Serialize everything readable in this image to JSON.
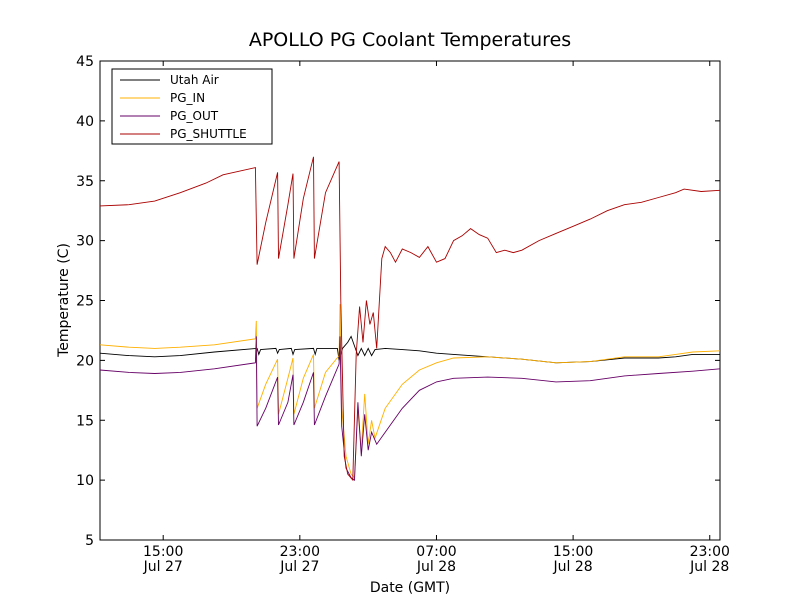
{
  "chart_data": {
    "type": "line",
    "title": "APOLLO PG Coolant Temperatures",
    "xlabel": "Date (GMT)",
    "ylabel": "Temperature (C)",
    "ylim": [
      5,
      45
    ],
    "xlim_hours": [
      11.3,
      23.6
    ],
    "xlim_note": "hours relative to Jul 27 00:00 from 11.3 to 23.6 -> expressed as 11.3 to 47.6 continuous",
    "x_range": [
      11.3,
      47.6
    ],
    "yticks": [
      "5",
      "10",
      "15",
      "20",
      "25",
      "30",
      "35",
      "40",
      "45"
    ],
    "ytick_values": [
      5,
      10,
      15,
      20,
      25,
      30,
      35,
      40,
      45
    ],
    "xticks": [
      {
        "value": 15,
        "time": "15:00",
        "date": "Jul 27"
      },
      {
        "value": 23,
        "time": "23:00",
        "date": "Jul 27"
      },
      {
        "value": 31,
        "time": "07:00",
        "date": "Jul 28"
      },
      {
        "value": 39,
        "time": "15:00",
        "date": "Jul 28"
      },
      {
        "value": 47,
        "time": "23:00",
        "date": "Jul 28"
      }
    ],
    "legend_position": "top-left",
    "series": [
      {
        "name": "Utah Air",
        "color": "#000000",
        "points": [
          [
            11.3,
            20.6
          ],
          [
            13,
            20.4
          ],
          [
            14.5,
            20.3
          ],
          [
            16,
            20.4
          ],
          [
            18,
            20.7
          ],
          [
            20.5,
            21.0
          ],
          [
            20.6,
            20.5
          ],
          [
            20.7,
            20.9
          ],
          [
            21.6,
            21.0
          ],
          [
            21.7,
            20.6
          ],
          [
            21.8,
            20.9
          ],
          [
            22.5,
            21.0
          ],
          [
            22.6,
            20.5
          ],
          [
            22.7,
            20.9
          ],
          [
            23.8,
            21.0
          ],
          [
            23.9,
            20.5
          ],
          [
            24,
            21.0
          ],
          [
            25.2,
            21.0
          ],
          [
            25.3,
            20.0
          ],
          [
            25.5,
            21.0
          ],
          [
            25.8,
            21.5
          ],
          [
            26,
            22.0
          ],
          [
            26.2,
            21.2
          ],
          [
            26.4,
            20.4
          ],
          [
            26.6,
            21.0
          ],
          [
            26.8,
            20.4
          ],
          [
            27,
            21.0
          ],
          [
            27.2,
            20.4
          ],
          [
            27.4,
            20.9
          ],
          [
            28,
            21.0
          ],
          [
            29,
            20.9
          ],
          [
            30,
            20.8
          ],
          [
            31,
            20.6
          ],
          [
            32,
            20.5
          ],
          [
            34,
            20.3
          ],
          [
            36,
            20.1
          ],
          [
            38,
            19.8
          ],
          [
            40,
            19.9
          ],
          [
            42,
            20.2
          ],
          [
            44,
            20.2
          ],
          [
            45,
            20.3
          ],
          [
            46,
            20.5
          ],
          [
            47.6,
            20.5
          ]
        ]
      },
      {
        "name": "PG_IN",
        "color": "#ffb000",
        "points": [
          [
            11.3,
            21.3
          ],
          [
            13,
            21.1
          ],
          [
            14.5,
            21.0
          ],
          [
            16,
            21.1
          ],
          [
            18,
            21.3
          ],
          [
            20.4,
            21.8
          ],
          [
            20.45,
            23.3
          ],
          [
            20.5,
            16.0
          ],
          [
            21,
            18.0
          ],
          [
            21.7,
            20.1
          ],
          [
            21.75,
            15.5
          ],
          [
            22.3,
            18.5
          ],
          [
            22.6,
            20.2
          ],
          [
            22.65,
            15.5
          ],
          [
            23.2,
            18.5
          ],
          [
            23.8,
            20.5
          ],
          [
            23.85,
            16.0
          ],
          [
            24.5,
            19.0
          ],
          [
            25.3,
            20.4
          ],
          [
            25.35,
            24.7
          ],
          [
            25.45,
            16.0
          ],
          [
            25.7,
            12.0
          ],
          [
            26,
            10.5
          ],
          [
            26.2,
            10.2
          ],
          [
            26.4,
            15.8
          ],
          [
            26.6,
            12.5
          ],
          [
            26.8,
            17.2
          ],
          [
            27,
            13.0
          ],
          [
            27.2,
            15.0
          ],
          [
            27.4,
            13.5
          ],
          [
            28,
            16.0
          ],
          [
            29,
            18.0
          ],
          [
            30,
            19.2
          ],
          [
            31,
            19.8
          ],
          [
            32,
            20.2
          ],
          [
            34,
            20.3
          ],
          [
            36,
            20.1
          ],
          [
            38,
            19.8
          ],
          [
            40,
            19.9
          ],
          [
            42,
            20.3
          ],
          [
            44,
            20.3
          ],
          [
            45,
            20.5
          ],
          [
            46,
            20.7
          ],
          [
            47.6,
            20.8
          ]
        ]
      },
      {
        "name": "PG_OUT",
        "color": "#660066",
        "points": [
          [
            11.3,
            19.2
          ],
          [
            13,
            19.0
          ],
          [
            14.5,
            18.9
          ],
          [
            16,
            19.0
          ],
          [
            18,
            19.3
          ],
          [
            20.4,
            19.8
          ],
          [
            20.45,
            22.0
          ],
          [
            20.5,
            14.5
          ],
          [
            21,
            16.0
          ],
          [
            21.7,
            18.6
          ],
          [
            21.75,
            14.6
          ],
          [
            22.3,
            16.5
          ],
          [
            22.6,
            18.8
          ],
          [
            22.65,
            14.6
          ],
          [
            23.2,
            16.5
          ],
          [
            23.8,
            19.0
          ],
          [
            23.85,
            14.6
          ],
          [
            24.5,
            17.0
          ],
          [
            25.3,
            19.7
          ],
          [
            25.35,
            22.0
          ],
          [
            25.45,
            14.5
          ],
          [
            25.7,
            11.0
          ],
          [
            26,
            10.2
          ],
          [
            26.2,
            10.0
          ],
          [
            26.4,
            16.5
          ],
          [
            26.6,
            12.0
          ],
          [
            26.8,
            15.5
          ],
          [
            27,
            12.5
          ],
          [
            27.2,
            14.0
          ],
          [
            27.5,
            13.0
          ],
          [
            28,
            14.0
          ],
          [
            29,
            16.0
          ],
          [
            30,
            17.5
          ],
          [
            31,
            18.2
          ],
          [
            32,
            18.5
          ],
          [
            34,
            18.6
          ],
          [
            36,
            18.5
          ],
          [
            38,
            18.2
          ],
          [
            40,
            18.3
          ],
          [
            42,
            18.7
          ],
          [
            44,
            18.9
          ],
          [
            46,
            19.1
          ],
          [
            47.6,
            19.3
          ]
        ]
      },
      {
        "name": "PG_SHUTTLE",
        "color": "#aa0000",
        "points": [
          [
            11.3,
            32.9
          ],
          [
            13,
            33.0
          ],
          [
            14.5,
            33.3
          ],
          [
            16,
            34.0
          ],
          [
            17.5,
            34.8
          ],
          [
            18.5,
            35.5
          ],
          [
            20.4,
            36.1
          ],
          [
            20.5,
            28.0
          ],
          [
            21,
            31.5
          ],
          [
            21.7,
            35.7
          ],
          [
            21.75,
            28.5
          ],
          [
            22.3,
            33.0
          ],
          [
            22.6,
            35.6
          ],
          [
            22.65,
            28.5
          ],
          [
            23.2,
            33.5
          ],
          [
            23.8,
            37.0
          ],
          [
            23.85,
            28.5
          ],
          [
            24.5,
            34.0
          ],
          [
            25.3,
            36.6
          ],
          [
            25.4,
            25.0
          ],
          [
            25.6,
            12.0
          ],
          [
            25.8,
            10.5
          ],
          [
            26.1,
            10.0
          ],
          [
            26.3,
            20.5
          ],
          [
            26.5,
            24.5
          ],
          [
            26.7,
            21.5
          ],
          [
            26.9,
            25.0
          ],
          [
            27.1,
            23.0
          ],
          [
            27.3,
            24.0
          ],
          [
            27.5,
            21.0
          ],
          [
            27.8,
            28.5
          ],
          [
            28,
            29.5
          ],
          [
            28.3,
            29.0
          ],
          [
            28.6,
            28.2
          ],
          [
            29,
            29.3
          ],
          [
            29.5,
            29.0
          ],
          [
            30,
            28.6
          ],
          [
            30.5,
            29.5
          ],
          [
            31,
            28.2
          ],
          [
            31.5,
            28.5
          ],
          [
            32,
            30.0
          ],
          [
            32.5,
            30.4
          ],
          [
            33,
            31.0
          ],
          [
            33.5,
            30.5
          ],
          [
            34,
            30.2
          ],
          [
            34.5,
            29.0
          ],
          [
            35,
            29.2
          ],
          [
            35.5,
            29.0
          ],
          [
            36,
            29.2
          ],
          [
            37,
            30.0
          ],
          [
            38,
            30.6
          ],
          [
            39,
            31.2
          ],
          [
            40,
            31.8
          ],
          [
            41,
            32.5
          ],
          [
            42,
            33.0
          ],
          [
            43,
            33.2
          ],
          [
            44,
            33.6
          ],
          [
            45,
            34.0
          ],
          [
            45.5,
            34.3
          ],
          [
            46.5,
            34.1
          ],
          [
            47.6,
            34.2
          ]
        ]
      }
    ]
  }
}
